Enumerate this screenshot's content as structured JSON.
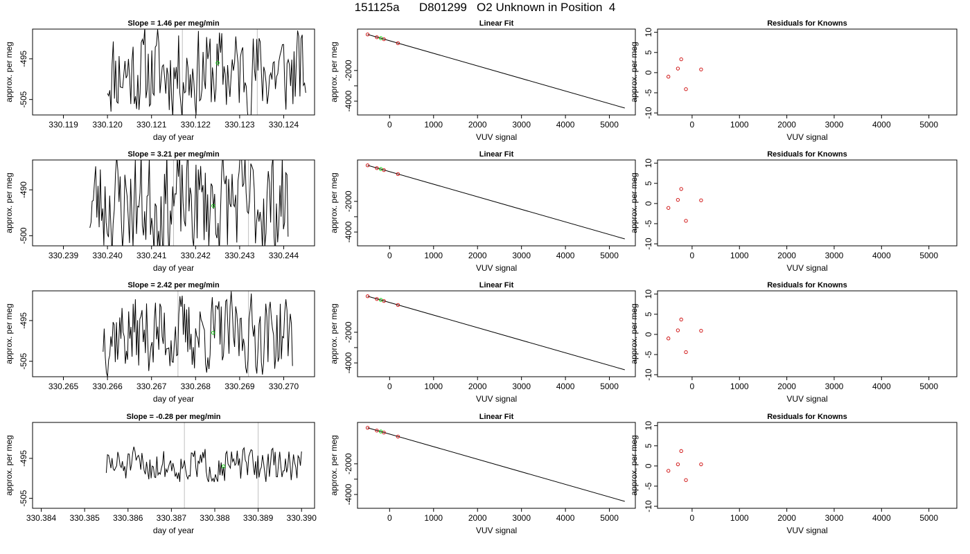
{
  "title": "151125a      D801299   O2 Unknown in Position  4",
  "colors": {
    "line": "#000000",
    "frame": "#000000",
    "known_point": "#cc0000",
    "unknown_point": "#00cc00",
    "marker_line": "#bfbfbf"
  },
  "chart_data": [
    {
      "type": "line",
      "row": 0,
      "col": 0,
      "title": "Slope =  1.46  per meg/min",
      "xlabel": "day of year",
      "ylabel": "approx. per meg",
      "xlim": [
        330.1183,
        330.1247
      ],
      "ylim": [
        -508.8,
        -487.7
      ],
      "xticks": [
        330.119,
        330.12,
        330.121,
        330.122,
        330.123,
        330.124
      ],
      "yticks": [
        -505,
        -495
      ],
      "xtick_labels": [
        "330.119",
        "330.120",
        "330.121",
        "330.122",
        "330.123",
        "330.124"
      ],
      "ytick_labels": [
        "-505",
        "-495"
      ],
      "vlines": [
        330.1217,
        330.1234
      ],
      "series_x": [
        330.12,
        330.1245
      ],
      "seed": 11,
      "vol": 0.8,
      "unknown_point": {
        "x": 330.1225,
        "y": -496.0
      }
    },
    {
      "type": "scatter",
      "row": 0,
      "col": 1,
      "title": "Linear Fit",
      "xlabel": "VUV signal",
      "ylabel": "approx. per meg",
      "xlim": [
        -730,
        5590
      ],
      "ylim": [
        -4900,
        700
      ],
      "xticks": [
        0,
        1000,
        2000,
        3000,
        4000,
        5000
      ],
      "xtick_labels": [
        "0",
        "1000",
        "2000",
        "3000",
        "4000",
        "5000"
      ],
      "yticks": [
        -4000,
        -3000,
        -2000
      ],
      "ytick_labels": [
        "-4000",
        "",
        "-2000"
      ],
      "fit_line": {
        "x": [
          -500,
          5350
        ],
        "y": [
          350,
          -4450
        ]
      },
      "known_points": [
        {
          "x": -500,
          "y": 350
        },
        {
          "x": -290,
          "y": 170
        },
        {
          "x": -130,
          "y": 40
        },
        {
          "x": 190,
          "y": -220
        }
      ],
      "unknown_points": [
        {
          "x": -200,
          "y": 110
        }
      ]
    },
    {
      "type": "scatter",
      "row": 0,
      "col": 2,
      "title": "Residuals for Knowns",
      "xlabel": "VUV signal",
      "ylabel": "approx. per meg",
      "xlim": [
        -730,
        5590
      ],
      "ylim": [
        -10.5,
        10.8
      ],
      "xticks": [
        0,
        1000,
        2000,
        3000,
        4000,
        5000
      ],
      "xtick_labels": [
        "0",
        "1000",
        "2000",
        "3000",
        "4000",
        "5000"
      ],
      "yticks": [
        -10,
        -5,
        0,
        5,
        10
      ],
      "ytick_labels": [
        "-10",
        "-5",
        "0",
        "5",
        "10"
      ],
      "known_points": [
        {
          "x": -500,
          "y": -1.0
        },
        {
          "x": -300,
          "y": 1.0
        },
        {
          "x": -230,
          "y": 3.3
        },
        {
          "x": -130,
          "y": -4.1
        },
        {
          "x": 190,
          "y": 0.8
        }
      ]
    },
    {
      "type": "line",
      "row": 1,
      "col": 0,
      "title": "Slope =  3.21  per meg/min",
      "xlabel": "day of year",
      "ylabel": "approx. per meg",
      "xlim": [
        330.2383,
        330.2447
      ],
      "ylim": [
        -502.2,
        -483.5
      ],
      "xticks": [
        330.239,
        330.24,
        330.241,
        330.242,
        330.243,
        330.244
      ],
      "yticks": [
        -500,
        -490
      ],
      "xtick_labels": [
        "330.239",
        "330.240",
        "330.241",
        "330.242",
        "330.243",
        "330.244"
      ],
      "ytick_labels": [
        "-500",
        "-490"
      ],
      "vlines": [
        330.2415,
        330.2432
      ],
      "series_x": [
        330.2396,
        330.2441
      ],
      "seed": 23,
      "vol": 0.95,
      "unknown_point": {
        "x": 330.2424,
        "y": -493.5
      }
    },
    {
      "type": "scatter",
      "row": 1,
      "col": 1,
      "title": "Linear Fit",
      "xlabel": "VUV signal",
      "ylabel": "approx. per meg",
      "xlim": [
        -730,
        5590
      ],
      "ylim": [
        -4900,
        700
      ],
      "xticks": [
        0,
        1000,
        2000,
        3000,
        4000,
        5000
      ],
      "xtick_labels": [
        "0",
        "1000",
        "2000",
        "3000",
        "4000",
        "5000"
      ],
      "yticks": [
        -4000,
        -3000,
        -2000
      ],
      "ytick_labels": [
        "-4000",
        "",
        "-2000"
      ],
      "fit_line": {
        "x": [
          -500,
          5350
        ],
        "y": [
          350,
          -4450
        ]
      },
      "known_points": [
        {
          "x": -500,
          "y": 350
        },
        {
          "x": -290,
          "y": 170
        },
        {
          "x": -130,
          "y": 40
        },
        {
          "x": 190,
          "y": -220
        }
      ],
      "unknown_points": [
        {
          "x": -200,
          "y": 110
        }
      ]
    },
    {
      "type": "scatter",
      "row": 1,
      "col": 2,
      "title": "Residuals for Knowns",
      "xlabel": "VUV signal",
      "ylabel": "approx. per meg",
      "xlim": [
        -730,
        5590
      ],
      "ylim": [
        -10.5,
        10.8
      ],
      "xticks": [
        0,
        1000,
        2000,
        3000,
        4000,
        5000
      ],
      "xtick_labels": [
        "0",
        "1000",
        "2000",
        "3000",
        "4000",
        "5000"
      ],
      "yticks": [
        -10,
        -5,
        0,
        5,
        10
      ],
      "ytick_labels": [
        "-10",
        "-5",
        "0",
        "5",
        "10"
      ],
      "known_points": [
        {
          "x": -500,
          "y": -1.1
        },
        {
          "x": -300,
          "y": 0.9
        },
        {
          "x": -230,
          "y": 3.6
        },
        {
          "x": -130,
          "y": -4.3
        },
        {
          "x": 190,
          "y": 0.8
        }
      ]
    },
    {
      "type": "line",
      "row": 2,
      "col": 0,
      "title": "Slope =  2.42  per meg/min",
      "xlabel": "day of year",
      "ylabel": "approx. per meg",
      "xlim": [
        330.2643,
        330.2707
      ],
      "ylim": [
        -508.8,
        -487.7
      ],
      "xticks": [
        330.265,
        330.266,
        330.267,
        330.268,
        330.269,
        330.27
      ],
      "yticks": [
        -505,
        -495
      ],
      "xtick_labels": [
        "330.265",
        "330.266",
        "330.267",
        "330.268",
        "330.269",
        "330.270"
      ],
      "ytick_labels": [
        "-505",
        "-495"
      ],
      "vlines": [
        330.2676,
        330.2692
      ],
      "series_x": [
        330.2659,
        330.2702
      ],
      "seed": 37,
      "vol": 0.7,
      "unknown_point": {
        "x": 330.2684,
        "y": -498.0
      }
    },
    {
      "type": "scatter",
      "row": 2,
      "col": 1,
      "title": "Linear Fit",
      "xlabel": "VUV signal",
      "ylabel": "approx. per meg",
      "xlim": [
        -730,
        5590
      ],
      "ylim": [
        -4900,
        700
      ],
      "xticks": [
        0,
        1000,
        2000,
        3000,
        4000,
        5000
      ],
      "xtick_labels": [
        "0",
        "1000",
        "2000",
        "3000",
        "4000",
        "5000"
      ],
      "yticks": [
        -4000,
        -3000,
        -2000
      ],
      "ytick_labels": [
        "-4000",
        "",
        "-2000"
      ],
      "fit_line": {
        "x": [
          -500,
          5350
        ],
        "y": [
          350,
          -4450
        ]
      },
      "known_points": [
        {
          "x": -500,
          "y": 350
        },
        {
          "x": -290,
          "y": 170
        },
        {
          "x": -130,
          "y": 40
        },
        {
          "x": 190,
          "y": -220
        }
      ],
      "unknown_points": [
        {
          "x": -200,
          "y": 110
        }
      ]
    },
    {
      "type": "scatter",
      "row": 2,
      "col": 2,
      "title": "Residuals for Knowns",
      "xlabel": "VUV signal",
      "ylabel": "approx. per meg",
      "xlim": [
        -730,
        5590
      ],
      "ylim": [
        -10.5,
        10.8
      ],
      "xticks": [
        0,
        1000,
        2000,
        3000,
        4000,
        5000
      ],
      "xtick_labels": [
        "0",
        "1000",
        "2000",
        "3000",
        "4000",
        "5000"
      ],
      "yticks": [
        -10,
        -5,
        0,
        5,
        10
      ],
      "ytick_labels": [
        "-10",
        "-5",
        "0",
        "5",
        "10"
      ],
      "known_points": [
        {
          "x": -500,
          "y": -1.0
        },
        {
          "x": -300,
          "y": 1.0
        },
        {
          "x": -230,
          "y": 3.7
        },
        {
          "x": -130,
          "y": -4.4
        },
        {
          "x": 190,
          "y": 0.9
        }
      ]
    },
    {
      "type": "line",
      "row": 3,
      "col": 0,
      "title": "Slope =  -0.28  per meg/min",
      "xlabel": "day of year",
      "ylabel": "approx. per meg",
      "xlim": [
        330.3838,
        330.3903
      ],
      "ylim": [
        -507.5,
        -486.0
      ],
      "xticks": [
        330.384,
        330.385,
        330.386,
        330.387,
        330.388,
        330.389,
        330.39
      ],
      "yticks": [
        -505,
        -495
      ],
      "xtick_labels": [
        "330.384",
        "330.385",
        "330.386",
        "330.387",
        "330.388",
        "330.389",
        "330.390"
      ],
      "ytick_labels": [
        "-505",
        "-495"
      ],
      "vlines": [
        330.3873,
        330.389
      ],
      "series_x": [
        330.3855,
        330.39
      ],
      "seed": 51,
      "vol": 0.3,
      "unknown_point": {
        "x": 330.3882,
        "y": -497.0
      }
    },
    {
      "type": "scatter",
      "row": 3,
      "col": 1,
      "title": "Linear Fit",
      "xlabel": "VUV signal",
      "ylabel": "approx. per meg",
      "xlim": [
        -730,
        5590
      ],
      "ylim": [
        -4900,
        700
      ],
      "xticks": [
        0,
        1000,
        2000,
        3000,
        4000,
        5000
      ],
      "xtick_labels": [
        "0",
        "1000",
        "2000",
        "3000",
        "4000",
        "5000"
      ],
      "yticks": [
        -4000,
        -3000,
        -2000
      ],
      "ytick_labels": [
        "-4000",
        "",
        "-2000"
      ],
      "fit_line": {
        "x": [
          -500,
          5350
        ],
        "y": [
          350,
          -4450
        ]
      },
      "known_points": [
        {
          "x": -500,
          "y": 350
        },
        {
          "x": -290,
          "y": 170
        },
        {
          "x": -130,
          "y": 40
        },
        {
          "x": 190,
          "y": -220
        }
      ],
      "unknown_points": [
        {
          "x": -200,
          "y": 110
        }
      ]
    },
    {
      "type": "scatter",
      "row": 3,
      "col": 2,
      "title": "Residuals for Knowns",
      "xlabel": "VUV signal",
      "ylabel": "approx. per meg",
      "xlim": [
        -730,
        5590
      ],
      "ylim": [
        -10.5,
        10.8
      ],
      "xticks": [
        0,
        1000,
        2000,
        3000,
        4000,
        5000
      ],
      "xtick_labels": [
        "0",
        "1000",
        "2000",
        "3000",
        "4000",
        "5000"
      ],
      "yticks": [
        -10,
        -5,
        0,
        5,
        10
      ],
      "ytick_labels": [
        "-10",
        "-5",
        "0",
        "5",
        "10"
      ],
      "known_points": [
        {
          "x": -500,
          "y": -1.2
        },
        {
          "x": -300,
          "y": 0.4
        },
        {
          "x": -230,
          "y": 3.7
        },
        {
          "x": -130,
          "y": -3.5
        },
        {
          "x": 190,
          "y": 0.4
        }
      ]
    }
  ]
}
